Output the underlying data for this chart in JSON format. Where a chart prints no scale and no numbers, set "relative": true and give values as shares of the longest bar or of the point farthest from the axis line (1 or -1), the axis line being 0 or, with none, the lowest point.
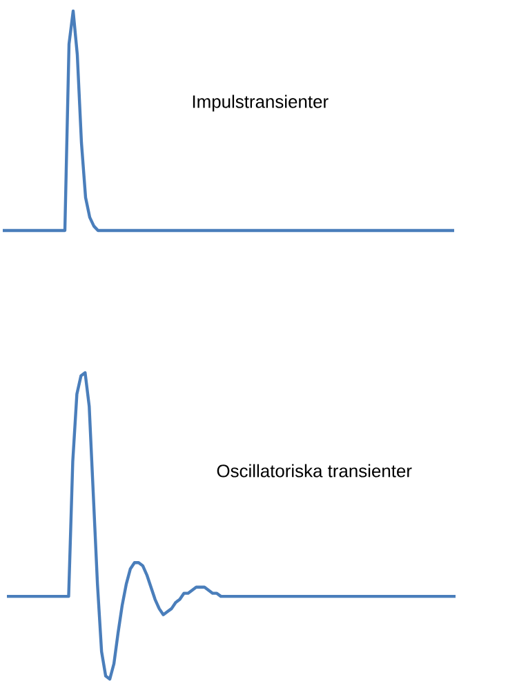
{
  "chart_data": [
    {
      "type": "line",
      "relative": true,
      "tick_labels": false,
      "color": "#4a7ebb",
      "categories": [
        null,
        null,
        null,
        null,
        null,
        null,
        null,
        null,
        null,
        null,
        null,
        null,
        null,
        null,
        null,
        null,
        null,
        null,
        null,
        null,
        null,
        null,
        null,
        null,
        null,
        null,
        null,
        null,
        null,
        null,
        null,
        null,
        null,
        null,
        null,
        null,
        null,
        null,
        null,
        null,
        null,
        null,
        null,
        null,
        null,
        null,
        null,
        null,
        null,
        null,
        null,
        null,
        null,
        null,
        null,
        null,
        null,
        null,
        null,
        null,
        null,
        null,
        null,
        null,
        null,
        null,
        null,
        null,
        null,
        null,
        null,
        null,
        null,
        null,
        null,
        null,
        null,
        null,
        null,
        null,
        null,
        null,
        null,
        null,
        null,
        null,
        null,
        null,
        null,
        null,
        null,
        null,
        null,
        null,
        null,
        null,
        null,
        null,
        null,
        null,
        null,
        null,
        null,
        null,
        null,
        null,
        null,
        null,
        null,
        null
      ],
      "values": [
        0,
        0,
        0,
        0,
        0,
        0,
        0,
        0,
        0,
        0,
        0,
        0,
        0,
        0,
        0,
        0,
        0.85,
        1,
        0.8,
        0.4,
        0.15,
        0.06,
        0.02,
        0,
        0,
        0,
        0,
        0,
        0,
        0,
        0,
        0,
        0,
        0,
        0,
        0,
        0,
        0,
        0,
        0,
        0,
        0,
        0,
        0,
        0,
        0,
        0,
        0,
        0,
        0,
        0,
        0,
        0,
        0,
        0,
        0,
        0,
        0,
        0,
        0,
        0,
        0,
        0,
        0,
        0,
        0,
        0,
        0,
        0,
        0,
        0,
        0,
        0,
        0,
        0,
        0,
        0,
        0,
        0,
        0,
        0,
        0,
        0,
        0,
        0,
        0,
        0,
        0,
        0,
        0,
        0,
        0,
        0,
        0,
        0,
        0,
        0,
        0,
        0,
        0,
        0,
        0,
        0,
        0,
        0,
        0,
        0,
        0,
        0,
        0
      ],
      "annotations": [
        "Impulstransienter"
      ]
    },
    {
      "type": "line",
      "relative": true,
      "tick_labels": false,
      "color": "#4a7ebb",
      "categories": [
        null,
        null,
        null,
        null,
        null,
        null,
        null,
        null,
        null,
        null,
        null,
        null,
        null,
        null,
        null,
        null,
        null,
        null,
        null,
        null,
        null,
        null,
        null,
        null,
        null,
        null,
        null,
        null,
        null,
        null,
        null,
        null,
        null,
        null,
        null,
        null,
        null,
        null,
        null,
        null,
        null,
        null,
        null,
        null,
        null,
        null,
        null,
        null,
        null,
        null,
        null,
        null,
        null,
        null,
        null,
        null,
        null,
        null,
        null,
        null,
        null,
        null,
        null,
        null,
        null,
        null,
        null,
        null,
        null,
        null,
        null,
        null,
        null,
        null,
        null,
        null,
        null,
        null,
        null,
        null,
        null,
        null,
        null,
        null,
        null,
        null,
        null,
        null,
        null,
        null,
        null,
        null,
        null,
        null,
        null,
        null,
        null,
        null,
        null,
        null,
        null,
        null,
        null,
        null,
        null,
        null,
        null,
        null,
        null,
        null
      ],
      "values": [
        0.27,
        0.27,
        0.27,
        0.27,
        0.27,
        0.27,
        0.27,
        0.27,
        0.27,
        0.27,
        0.27,
        0.27,
        0.27,
        0.27,
        0.27,
        0.27,
        0.71,
        0.93,
        0.99,
        1,
        0.89,
        0.6,
        0.31,
        0.09,
        0.01,
        0,
        0.05,
        0.15,
        0.24,
        0.31,
        0.36,
        0.38,
        0.38,
        0.37,
        0.34,
        0.3,
        0.26,
        0.23,
        0.21,
        0.22,
        0.23,
        0.25,
        0.26,
        0.28,
        0.28,
        0.29,
        0.3,
        0.3,
        0.3,
        0.29,
        0.28,
        0.28,
        0.27,
        0.27,
        0.27,
        0.27,
        0.27,
        0.27,
        0.27,
        0.27,
        0.27,
        0.27,
        0.27,
        0.27,
        0.27,
        0.27,
        0.27,
        0.27,
        0.27,
        0.27,
        0.27,
        0.27,
        0.27,
        0.27,
        0.27,
        0.27,
        0.27,
        0.27,
        0.27,
        0.27,
        0.27,
        0.27,
        0.27,
        0.27,
        0.27,
        0.27,
        0.27,
        0.27,
        0.27,
        0.27,
        0.27,
        0.27,
        0.27,
        0.27,
        0.27,
        0.27,
        0.27,
        0.27,
        0.27,
        0.27,
        0.27,
        0.27,
        0.27,
        0.27,
        0.27,
        0.27,
        0.27,
        0.27,
        0.27,
        0.27
      ],
      "annotations": [
        "Oscillatoriska transienter"
      ]
    }
  ]
}
